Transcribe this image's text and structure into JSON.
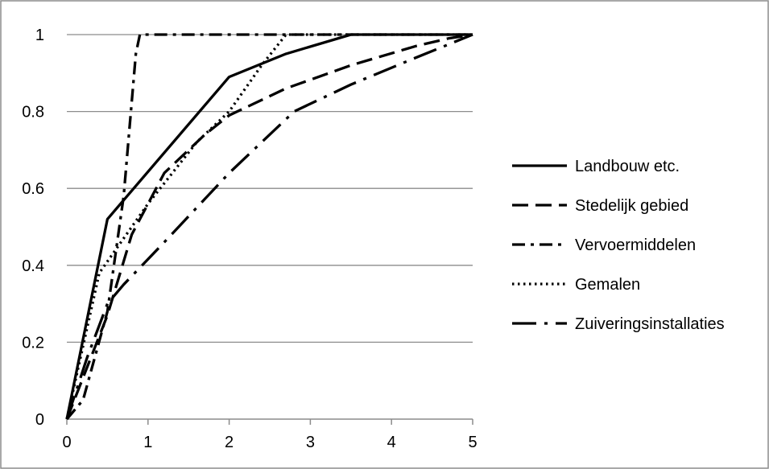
{
  "chart_data": {
    "type": "line",
    "title": "",
    "xlabel": "",
    "ylabel": "",
    "xlim": [
      0,
      5
    ],
    "ylim": [
      0,
      1
    ],
    "xticks": [
      "0",
      "1",
      "2",
      "3",
      "4",
      "5"
    ],
    "yticks": [
      "0",
      "0.2",
      "0.4",
      "0.6",
      "0.8",
      "1"
    ],
    "grid": "horizontal",
    "legend_position": "right",
    "series": [
      {
        "name": "Landbouw etc.",
        "style": "solid",
        "x": [
          0,
          0.5,
          2,
          2.7,
          3.5,
          5
        ],
        "y": [
          0,
          0.52,
          0.89,
          0.95,
          1,
          1
        ]
      },
      {
        "name": "Stedelijk gebied",
        "style": "dash",
        "x": [
          0,
          0.5,
          0.8,
          1.2,
          1.7,
          2,
          2.7,
          3.5,
          4.3,
          4.7,
          5
        ],
        "y": [
          0,
          0.27,
          0.48,
          0.64,
          0.74,
          0.79,
          0.86,
          0.92,
          0.97,
          0.99,
          1
        ]
      },
      {
        "name": "Vervoermiddelen",
        "style": "dashdot",
        "x": [
          0,
          0.2,
          0.5,
          0.7,
          0.85,
          0.9,
          5
        ],
        "y": [
          0,
          0.05,
          0.28,
          0.58,
          0.95,
          1,
          1
        ]
      },
      {
        "name": "Gemalen",
        "style": "dot",
        "x": [
          0,
          0.4,
          1,
          1.6,
          2,
          2.4,
          2.7,
          5
        ],
        "y": [
          0,
          0.38,
          0.56,
          0.72,
          0.8,
          0.92,
          1,
          1
        ]
      },
      {
        "name": "Zuiveringsinstallaties",
        "style": "longdashdot",
        "x": [
          0,
          0.25,
          0.5,
          0.7,
          1.2,
          2,
          2.8,
          3.5,
          4.3,
          5
        ],
        "y": [
          0,
          0.16,
          0.3,
          0.35,
          0.46,
          0.64,
          0.8,
          0.87,
          0.94,
          1
        ]
      }
    ]
  }
}
